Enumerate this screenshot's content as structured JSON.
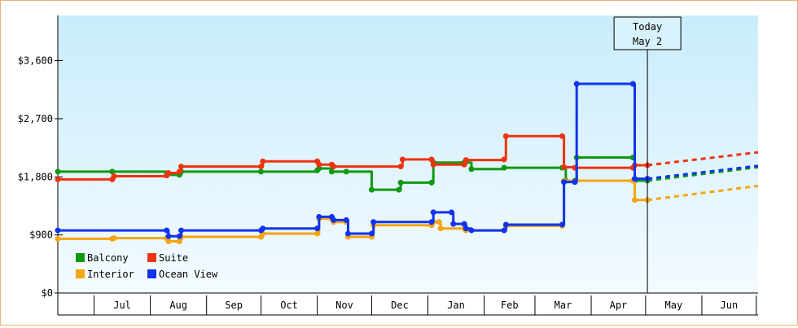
{
  "chart_data": {
    "type": "line",
    "y_ticks": [
      {
        "value": 0,
        "label": "$0"
      },
      {
        "value": 900,
        "label": "$900"
      },
      {
        "value": 1800,
        "label": "$1,800"
      },
      {
        "value": 2700,
        "label": "$2,700"
      },
      {
        "value": 3600,
        "label": "$3,600"
      }
    ],
    "ylim": [
      0,
      4300
    ],
    "x_range": [
      "2019-06-11",
      "2019-07-02"
    ],
    "x_domain": [
      "2018-06-11",
      "2019-07-02"
    ],
    "months": [
      {
        "label": "Jul",
        "start": "2018-07-01",
        "end": "2018-08-01"
      },
      {
        "label": "Aug",
        "start": "2018-08-01",
        "end": "2018-09-01"
      },
      {
        "label": "Sep",
        "start": "2018-09-01",
        "end": "2018-10-01"
      },
      {
        "label": "Oct",
        "start": "2018-10-01",
        "end": "2018-11-01"
      },
      {
        "label": "Nov",
        "start": "2018-11-01",
        "end": "2018-12-01"
      },
      {
        "label": "Dec",
        "start": "2018-12-01",
        "end": "2019-01-01"
      },
      {
        "label": "Jan",
        "start": "2019-01-01",
        "end": "2019-02-01"
      },
      {
        "label": "Feb",
        "start": "2019-02-01",
        "end": "2019-03-01"
      },
      {
        "label": "Mar",
        "start": "2019-03-01",
        "end": "2019-04-01"
      },
      {
        "label": "Apr",
        "start": "2019-04-01",
        "end": "2019-05-01"
      },
      {
        "label": "May",
        "start": "2019-05-01",
        "end": "2019-06-01"
      },
      {
        "label": "Jun",
        "start": "2019-06-01",
        "end": "2019-07-01"
      }
    ],
    "today": {
      "date": "2019-05-02",
      "line1": "Today",
      "line2": "May 2"
    },
    "legend": [
      "Balcony",
      "Suite",
      "Interior",
      "Ocean View"
    ],
    "series": [
      {
        "name": "Balcony",
        "color": "#119911",
        "points": [
          [
            "2018-06-11",
            1880
          ],
          [
            "2018-07-11",
            1880
          ],
          [
            "2018-08-10",
            1830
          ],
          [
            "2018-08-17",
            1830
          ],
          [
            "2018-08-18",
            1880
          ],
          [
            "2018-10-01",
            1880
          ],
          [
            "2018-11-01",
            1900
          ],
          [
            "2018-11-02",
            1930
          ],
          [
            "2018-11-09",
            1880
          ],
          [
            "2018-11-17",
            1880
          ],
          [
            "2018-12-01",
            1600
          ],
          [
            "2018-12-16",
            1600
          ],
          [
            "2018-12-17",
            1710
          ],
          [
            "2019-01-03",
            1710
          ],
          [
            "2019-01-04",
            2020
          ],
          [
            "2019-01-14",
            2020
          ],
          [
            "2019-01-21",
            2020
          ],
          [
            "2019-01-25",
            1920
          ],
          [
            "2019-02-12",
            1940
          ],
          [
            "2019-03-16",
            1940
          ],
          [
            "2019-03-18",
            1740
          ],
          [
            "2019-03-23",
            1740
          ],
          [
            "2019-03-24",
            2100
          ],
          [
            "2019-04-24",
            2100
          ],
          [
            "2019-04-25",
            1740
          ],
          [
            "2019-05-02",
            1740
          ]
        ],
        "forecast": [
          [
            "2019-05-02",
            1740
          ],
          [
            "2019-07-02",
            1950
          ]
        ]
      },
      {
        "name": "Suite",
        "color": "#ee3311",
        "points": [
          [
            "2018-06-11",
            1760
          ],
          [
            "2018-07-11",
            1760
          ],
          [
            "2018-07-12",
            1810
          ],
          [
            "2018-08-10",
            1820
          ],
          [
            "2018-08-11",
            1860
          ],
          [
            "2018-08-17",
            1880
          ],
          [
            "2018-08-18",
            1960
          ],
          [
            "2018-10-01",
            1960
          ],
          [
            "2018-10-02",
            2040
          ],
          [
            "2018-11-01",
            2040
          ],
          [
            "2018-11-02",
            1990
          ],
          [
            "2018-11-09",
            1990
          ],
          [
            "2018-11-10",
            1960
          ],
          [
            "2018-11-17",
            1960
          ],
          [
            "2018-11-18",
            1960
          ],
          [
            "2018-12-17",
            1960
          ],
          [
            "2018-12-18",
            2070
          ],
          [
            "2019-01-03",
            2070
          ],
          [
            "2019-01-04",
            1990
          ],
          [
            "2019-01-21",
            1990
          ],
          [
            "2019-01-22",
            2060
          ],
          [
            "2019-02-12",
            2070
          ],
          [
            "2019-02-13",
            2430
          ],
          [
            "2019-03-16",
            2430
          ],
          [
            "2019-03-17",
            1950
          ],
          [
            "2019-03-23",
            1940
          ],
          [
            "2019-04-24",
            1940
          ],
          [
            "2019-04-25",
            1980
          ],
          [
            "2019-05-02",
            1980
          ]
        ],
        "forecast": [
          [
            "2019-05-02",
            1980
          ],
          [
            "2019-07-02",
            2180
          ]
        ]
      },
      {
        "name": "Interior",
        "color": "#f5a511",
        "points": [
          [
            "2018-06-11",
            840
          ],
          [
            "2018-07-11",
            840
          ],
          [
            "2018-07-12",
            850
          ],
          [
            "2018-08-10",
            850
          ],
          [
            "2018-08-11",
            800
          ],
          [
            "2018-08-17",
            800
          ],
          [
            "2018-08-18",
            870
          ],
          [
            "2018-10-01",
            870
          ],
          [
            "2018-10-02",
            920
          ],
          [
            "2018-11-01",
            920
          ],
          [
            "2018-11-02",
            1150
          ],
          [
            "2018-11-09",
            1150
          ],
          [
            "2018-11-10",
            1100
          ],
          [
            "2018-11-17",
            1100
          ],
          [
            "2018-11-18",
            870
          ],
          [
            "2018-12-01",
            870
          ],
          [
            "2018-12-02",
            1050
          ],
          [
            "2019-01-03",
            1050
          ],
          [
            "2019-01-04",
            1100
          ],
          [
            "2019-01-07",
            1100
          ],
          [
            "2019-01-08",
            1000
          ],
          [
            "2019-01-21",
            1000
          ],
          [
            "2019-01-22",
            970
          ],
          [
            "2019-02-12",
            970
          ],
          [
            "2019-02-13",
            1040
          ],
          [
            "2019-03-16",
            1040
          ],
          [
            "2019-03-17",
            1740
          ],
          [
            "2019-04-24",
            1740
          ],
          [
            "2019-04-25",
            1440
          ],
          [
            "2019-05-02",
            1440
          ]
        ],
        "forecast": [
          [
            "2019-05-02",
            1440
          ],
          [
            "2019-07-02",
            1660
          ]
        ]
      },
      {
        "name": "Ocean View",
        "color": "#1133ee",
        "points": [
          [
            "2018-06-11",
            970
          ],
          [
            "2018-07-11",
            970
          ],
          [
            "2018-07-12",
            970
          ],
          [
            "2018-08-10",
            970
          ],
          [
            "2018-08-11",
            880
          ],
          [
            "2018-08-17",
            880
          ],
          [
            "2018-08-18",
            970
          ],
          [
            "2018-10-01",
            970
          ],
          [
            "2018-10-02",
            1000
          ],
          [
            "2018-11-01",
            1000
          ],
          [
            "2018-11-02",
            1180
          ],
          [
            "2018-11-09",
            1180
          ],
          [
            "2018-11-10",
            1130
          ],
          [
            "2018-11-17",
            1130
          ],
          [
            "2018-11-18",
            920
          ],
          [
            "2018-12-01",
            920
          ],
          [
            "2018-12-02",
            1100
          ],
          [
            "2019-01-03",
            1100
          ],
          [
            "2019-01-04",
            1250
          ],
          [
            "2019-01-14",
            1250
          ],
          [
            "2019-01-15",
            1070
          ],
          [
            "2019-01-21",
            1070
          ],
          [
            "2019-01-22",
            1000
          ],
          [
            "2019-01-25",
            970
          ],
          [
            "2019-02-12",
            970
          ],
          [
            "2019-02-13",
            1060
          ],
          [
            "2019-03-16",
            1060
          ],
          [
            "2019-03-17",
            1720
          ],
          [
            "2019-03-23",
            1720
          ],
          [
            "2019-03-24",
            3240
          ],
          [
            "2019-04-24",
            3240
          ],
          [
            "2019-04-25",
            1770
          ],
          [
            "2019-05-02",
            1770
          ]
        ],
        "forecast": [
          [
            "2019-05-02",
            1770
          ],
          [
            "2019-07-02",
            1970
          ]
        ]
      }
    ]
  }
}
